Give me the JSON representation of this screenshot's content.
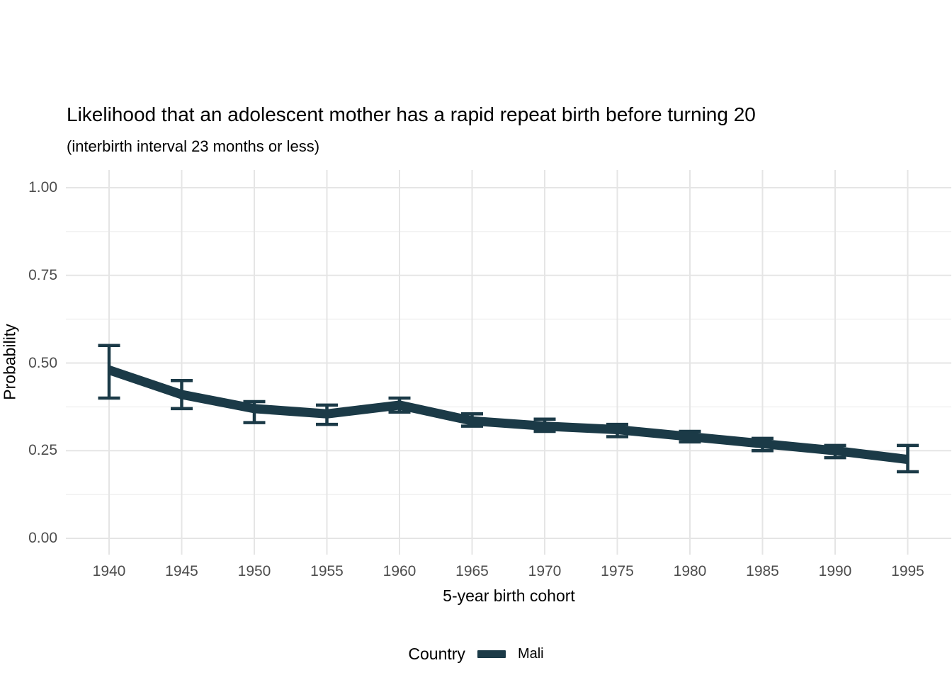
{
  "header": {
    "title": "Likelihood that an adolescent mother has a rapid repeat birth before turning 20",
    "subtitle": "(interbirth interval 23 months or less)"
  },
  "chart_data": {
    "type": "line",
    "title": "Likelihood that an adolescent mother has a rapid repeat birth before turning 20",
    "subtitle": "(interbirth interval 23 months or less)",
    "xlabel": "5-year birth cohort",
    "ylabel": "Probability",
    "x": [
      1940,
      1945,
      1950,
      1955,
      1960,
      1965,
      1970,
      1975,
      1980,
      1985,
      1990,
      1995
    ],
    "series": [
      {
        "name": "Mali",
        "color": "#1b3a47",
        "values": [
          0.48,
          0.41,
          0.37,
          0.355,
          0.38,
          0.335,
          0.32,
          0.31,
          0.29,
          0.27,
          0.25,
          0.225
        ],
        "ci_low": [
          0.4,
          0.37,
          0.33,
          0.325,
          0.36,
          0.32,
          0.305,
          0.29,
          0.275,
          0.25,
          0.23,
          0.19
        ],
        "ci_high": [
          0.55,
          0.45,
          0.39,
          0.38,
          0.4,
          0.355,
          0.34,
          0.325,
          0.305,
          0.285,
          0.265,
          0.265
        ]
      }
    ],
    "error_bars": true,
    "xticks": [
      1940,
      1945,
      1950,
      1955,
      1960,
      1965,
      1970,
      1975,
      1980,
      1985,
      1990,
      1995
    ],
    "yticks": [
      0,
      0.25,
      0.5,
      0.75,
      1
    ],
    "ytick_labels": [
      "0.00",
      "0.25",
      "0.50",
      "0.75",
      "1.00"
    ],
    "ylim": [
      0,
      1
    ],
    "grid": "horizontal major+minor, vertical major only, no axis ticks",
    "grid_major_color": "#e5e5e5",
    "grid_minor_color": "#f0f0f0",
    "text_color_ticks": "#4d4d4d",
    "legend_position": "bottom",
    "legend_title": "Country"
  }
}
